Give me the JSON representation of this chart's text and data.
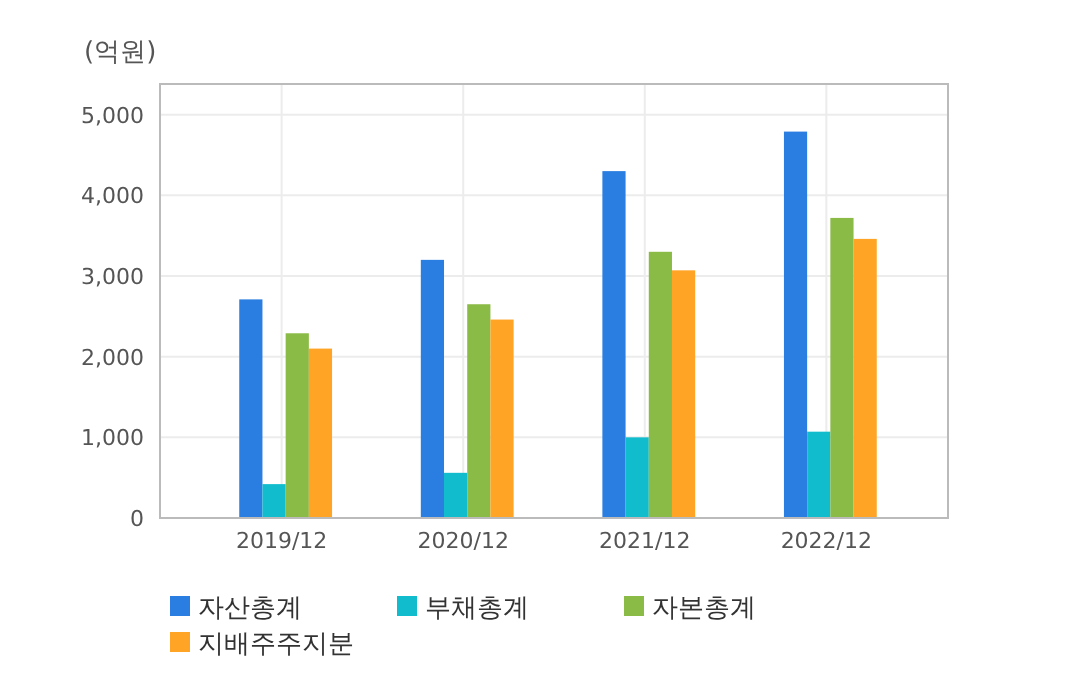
{
  "chart_data": {
    "type": "bar",
    "ylabel": "(억원)",
    "categories": [
      "2019/12",
      "2020/12",
      "2021/12",
      "2022/12"
    ],
    "series": [
      {
        "name": "자산총계",
        "color": "#2a7de1",
        "values": [
          2710,
          3200,
          4300,
          4790
        ]
      },
      {
        "name": "부채총계",
        "color": "#11bccd",
        "values": [
          420,
          560,
          1000,
          1070
        ]
      },
      {
        "name": "자본총계",
        "color": "#8bbb47",
        "values": [
          2290,
          2650,
          3300,
          3720
        ]
      },
      {
        "name": "지배주주지분",
        "color": "#ffa424",
        "values": [
          2100,
          2460,
          3070,
          3460
        ]
      }
    ],
    "ylim": [
      0,
      5380
    ],
    "yticks": [
      0,
      {
        "value": 1000,
        "label": "1,000"
      },
      {
        "value": 2000,
        "label": "2,000"
      },
      {
        "value": 3000,
        "label": "3,000"
      },
      {
        "value": 4000,
        "label": "4,000"
      },
      {
        "value": 5000,
        "label": "5,000"
      }
    ],
    "grid": true,
    "legend": "bottom"
  }
}
